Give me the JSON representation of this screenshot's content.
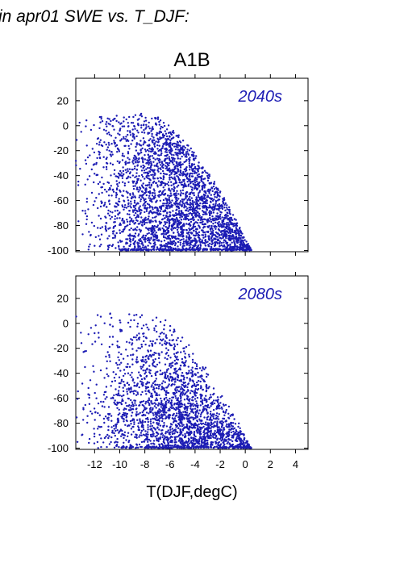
{
  "figure": {
    "title_top": "in apr01 SWE vs. T_DJF:",
    "title_main": "A1B",
    "xlabel": "T(DJF,degC)"
  },
  "colors": {
    "points": "#1c1cb4",
    "frame": "#000000"
  },
  "chart_data": [
    {
      "type": "scatter",
      "label": "2040s",
      "xlim": [
        -13.5,
        5.0
      ],
      "ylim": [
        -101,
        38
      ],
      "xticks": [
        -12,
        -10,
        -8,
        -6,
        -4,
        -2,
        0,
        2,
        4
      ],
      "yticks": [
        20,
        0,
        -20,
        -40,
        -60,
        -80,
        -100
      ],
      "ytick_labels": [
        "20",
        "0",
        "-20",
        "-40",
        "-60",
        "-80",
        "-100"
      ],
      "xtick_labels": [],
      "grid": false,
      "cloud": {
        "n_points": 3000,
        "x_range": [
          -13.5,
          0.5
        ],
        "y_top": 10,
        "y_bottom": -100,
        "density_peak_x": -5.5,
        "floor_y": -100,
        "floor_x_range": [
          -10,
          0.5
        ]
      }
    },
    {
      "type": "scatter",
      "label": "2080s",
      "xlim": [
        -13.5,
        5.0
      ],
      "ylim": [
        -101,
        38
      ],
      "xticks": [
        -12,
        -10,
        -8,
        -6,
        -4,
        -2,
        0,
        2,
        4
      ],
      "yticks": [
        20,
        0,
        -20,
        -40,
        -60,
        -80,
        -100
      ],
      "ytick_labels": [
        "20",
        "0",
        "-20",
        "-40",
        "-60",
        "-80",
        "-100"
      ],
      "xtick_labels": [
        "-12",
        "-10",
        "-8",
        "-6",
        "-4",
        "-2",
        "0",
        "2",
        "4"
      ],
      "grid": false,
      "cloud": {
        "n_points": 2200,
        "x_range": [
          -13.5,
          0.5
        ],
        "y_top": 10,
        "y_bottom": -100,
        "density_peak_x": -5.5,
        "floor_y": -100,
        "floor_x_range": [
          -10,
          0.5
        ]
      }
    }
  ]
}
